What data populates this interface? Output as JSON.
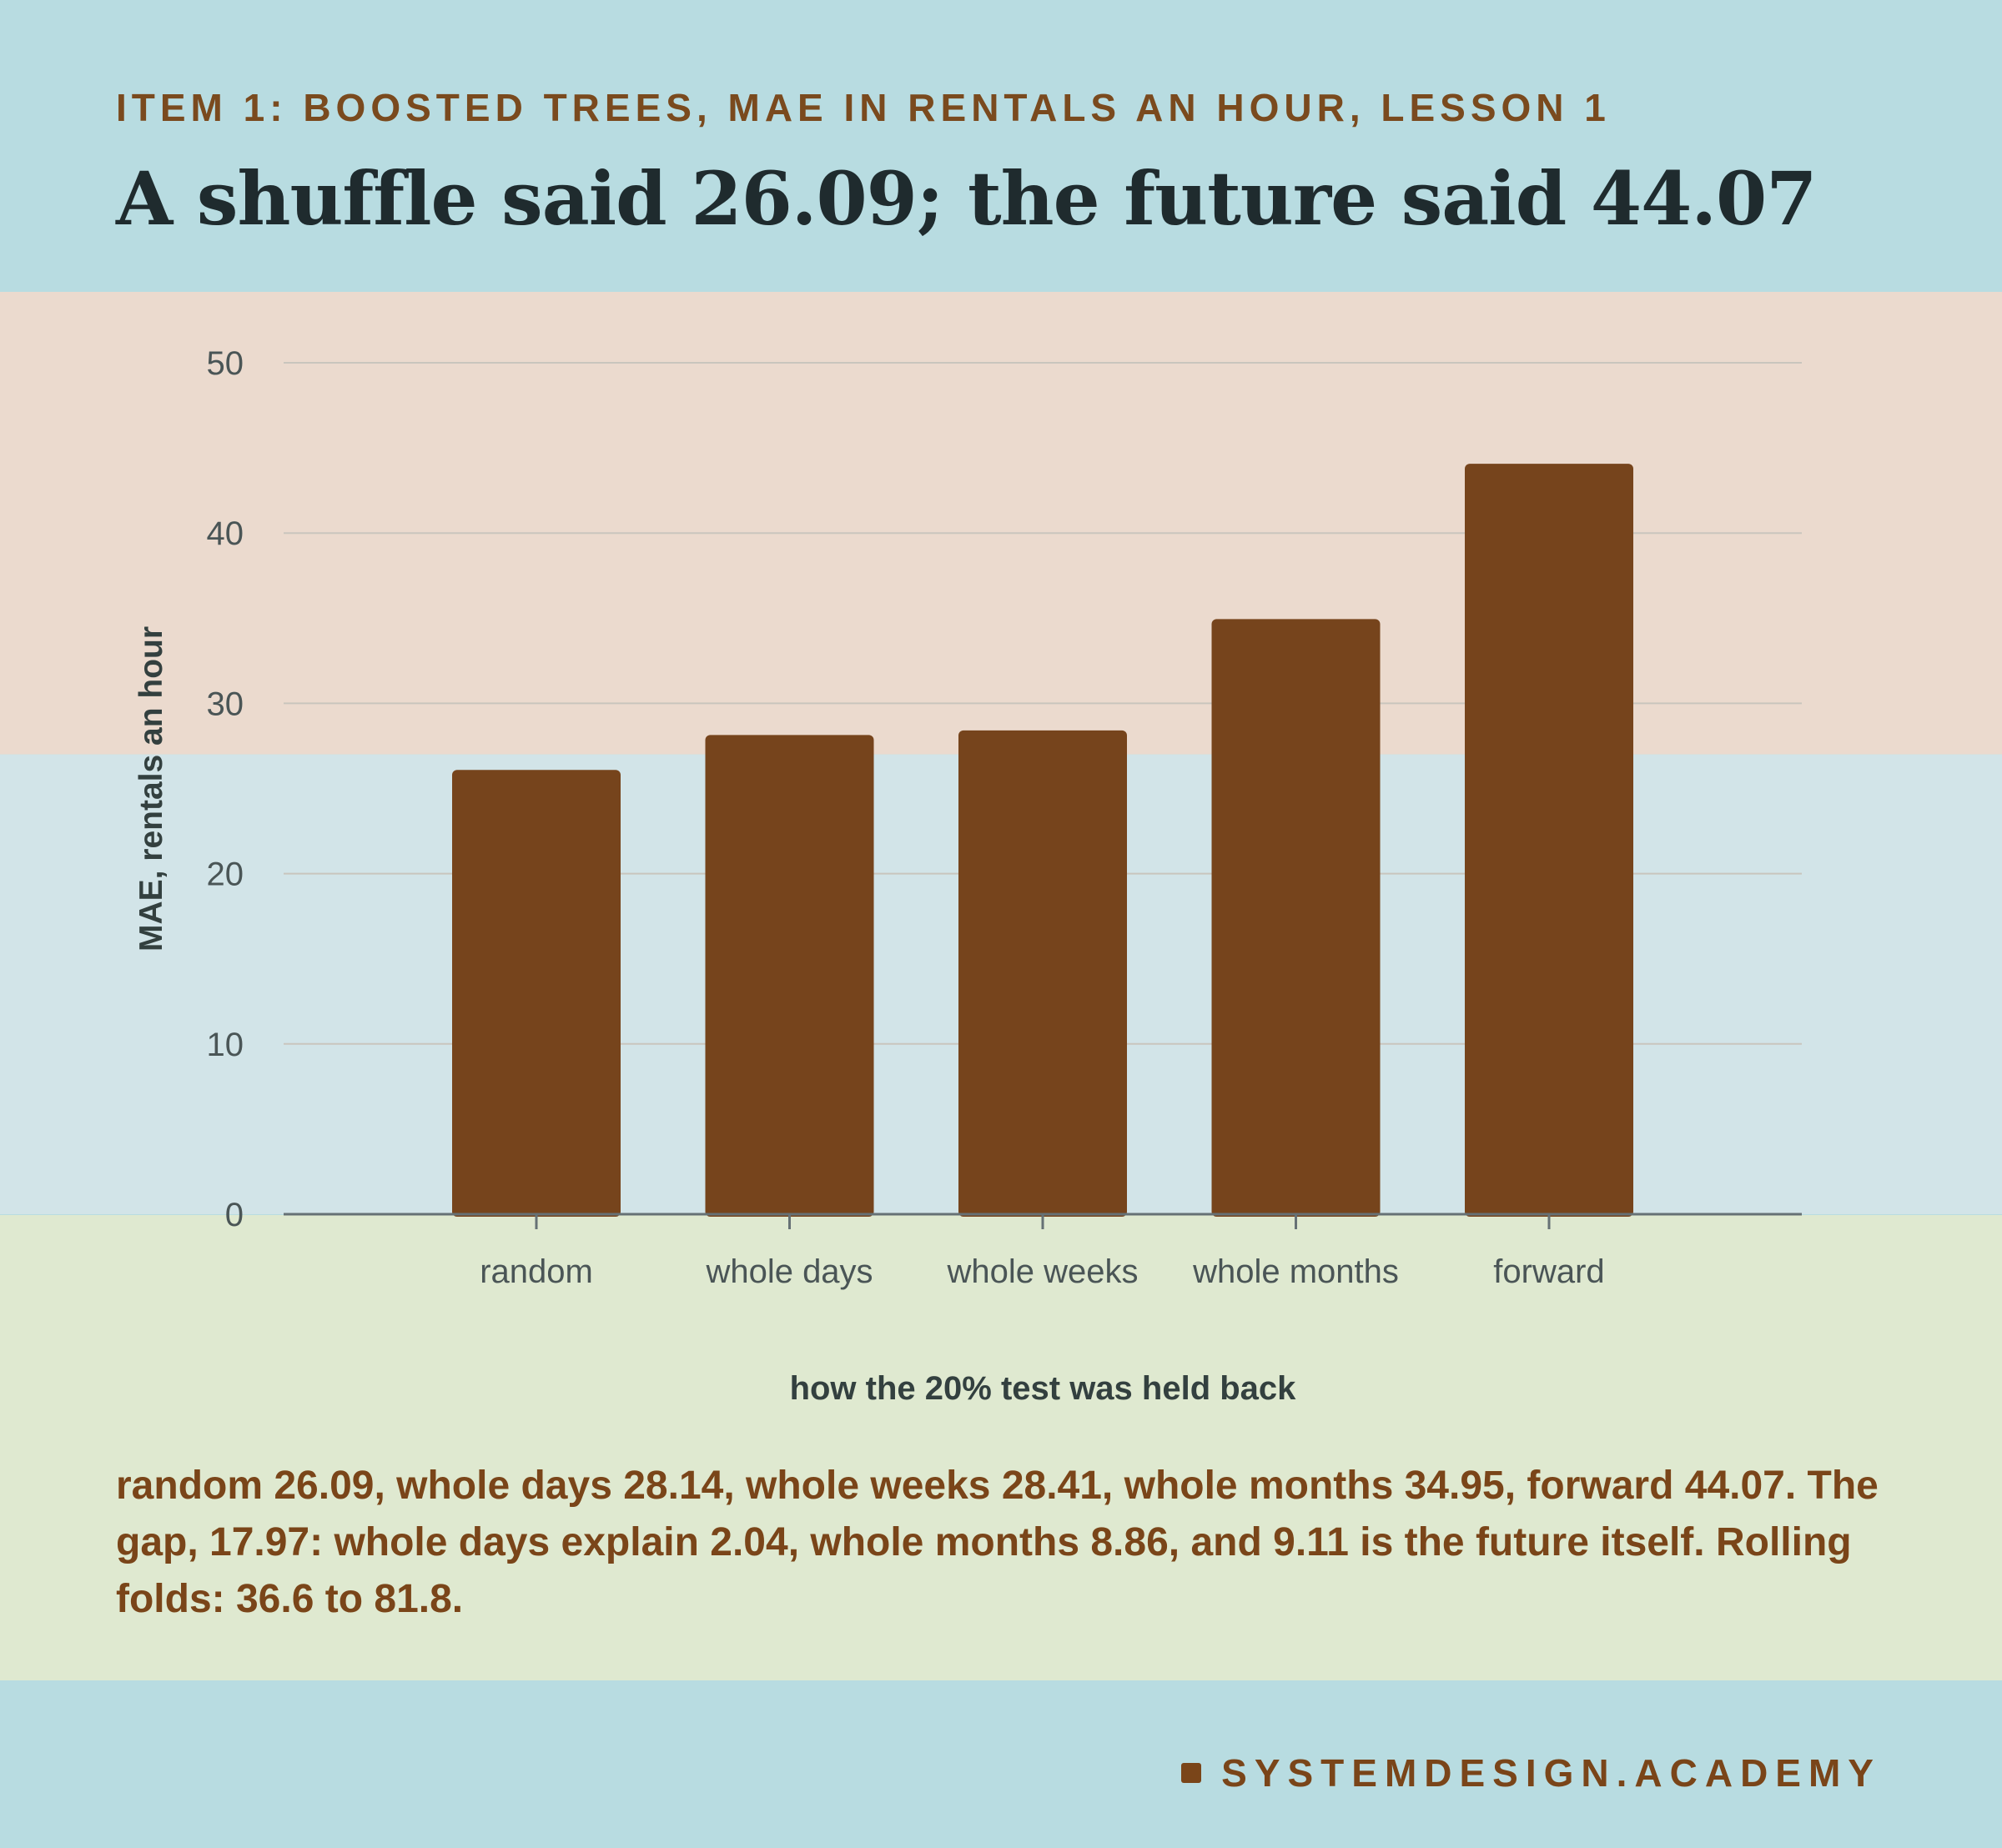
{
  "header": {
    "eyebrow": "ITEM 1: BOOSTED TREES, MAE IN RENTALS AN HOUR, LESSON 1",
    "title": "A shuffle said 26.09; the future said 44.07"
  },
  "chart_data": {
    "type": "bar",
    "categories": [
      "random",
      "whole days",
      "whole weeks",
      "whole months",
      "forward"
    ],
    "values": [
      26.09,
      28.14,
      28.41,
      34.95,
      44.07
    ],
    "xlabel": "how the 20% test was held back",
    "ylabel": "MAE, rentals an hour",
    "ylim": [
      0,
      50
    ],
    "yticks": [
      0,
      10,
      20,
      30,
      40,
      50
    ],
    "grid": true,
    "legend": "none",
    "bar_color": "#76441c",
    "bands": [
      {
        "range": [
          27,
          55
        ],
        "color": "#ebdace"
      },
      {
        "range": [
          0,
          27
        ],
        "color": "#d2e4e8"
      }
    ]
  },
  "caption": "random 26.09, whole days 28.14, whole weeks 28.41, whole months 34.95, forward 44.07. The gap, 17.97: whole days explain 2.04, whole months 8.86, and 9.11 is the future itself. Rolling folds: 36.6 to 81.8.",
  "footer": {
    "brand": "SYSTEMDESIGN.ACADEMY"
  },
  "colors": {
    "page_background": "#b8dce1",
    "lower_band": "#dfe9d0",
    "accent": "#7a4519",
    "title_text": "#1f2b2e"
  }
}
